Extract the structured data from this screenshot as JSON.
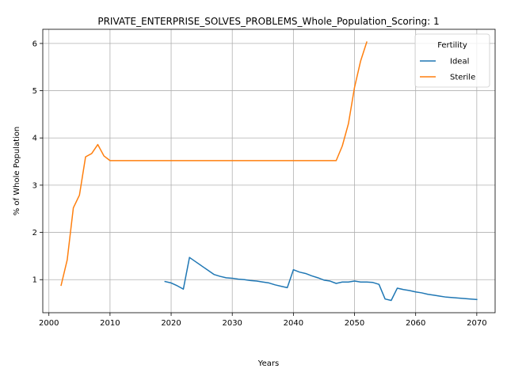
{
  "chart_data": {
    "type": "line",
    "title": "PRIVATE_ENTERPRISE_SOLVES_PROBLEMS_Whole_Population_Scoring: 1",
    "xlabel": "Years",
    "ylabel": "% of Whole Population",
    "xlim": [
      1999,
      2073
    ],
    "ylim": [
      0.3,
      6.3
    ],
    "xticks": [
      2000,
      2010,
      2020,
      2030,
      2040,
      2050,
      2060,
      2070
    ],
    "yticks": [
      1,
      2,
      3,
      4,
      5,
      6
    ],
    "grid": true,
    "legend": {
      "title": "Fertility",
      "placement": "top-right"
    },
    "series": [
      {
        "name": "Ideal",
        "color": "#1f77b4",
        "points": [
          [
            2019,
            0.96
          ],
          [
            2020,
            0.93
          ],
          [
            2021,
            0.87
          ],
          [
            2022,
            0.8
          ],
          [
            2023,
            1.47
          ],
          [
            2024,
            1.38
          ],
          [
            2025,
            1.29
          ],
          [
            2026,
            1.2
          ],
          [
            2027,
            1.11
          ],
          [
            2028,
            1.07
          ],
          [
            2029,
            1.04
          ],
          [
            2030,
            1.03
          ],
          [
            2031,
            1.01
          ],
          [
            2032,
            1.0
          ],
          [
            2033,
            0.98
          ],
          [
            2034,
            0.97
          ],
          [
            2035,
            0.95
          ],
          [
            2036,
            0.93
          ],
          [
            2037,
            0.89
          ],
          [
            2038,
            0.86
          ],
          [
            2039,
            0.83
          ],
          [
            2040,
            1.21
          ],
          [
            2041,
            1.16
          ],
          [
            2042,
            1.13
          ],
          [
            2043,
            1.08
          ],
          [
            2044,
            1.04
          ],
          [
            2045,
            0.99
          ],
          [
            2046,
            0.97
          ],
          [
            2047,
            0.92
          ],
          [
            2048,
            0.95
          ],
          [
            2049,
            0.95
          ],
          [
            2050,
            0.97
          ],
          [
            2051,
            0.95
          ],
          [
            2052,
            0.95
          ],
          [
            2053,
            0.94
          ],
          [
            2054,
            0.9
          ],
          [
            2055,
            0.59
          ],
          [
            2056,
            0.56
          ],
          [
            2057,
            0.82
          ],
          [
            2058,
            0.79
          ],
          [
            2059,
            0.77
          ],
          [
            2060,
            0.74
          ],
          [
            2061,
            0.72
          ],
          [
            2062,
            0.69
          ],
          [
            2063,
            0.67
          ],
          [
            2064,
            0.65
          ],
          [
            2065,
            0.63
          ],
          [
            2066,
            0.62
          ],
          [
            2067,
            0.61
          ],
          [
            2068,
            0.6
          ],
          [
            2069,
            0.59
          ],
          [
            2070,
            0.58
          ]
        ]
      },
      {
        "name": "Sterile",
        "color": "#ff7f0e",
        "points": [
          [
            2002,
            0.88
          ],
          [
            2003,
            1.42
          ],
          [
            2004,
            2.52
          ],
          [
            2005,
            2.79
          ],
          [
            2006,
            3.6
          ],
          [
            2007,
            3.67
          ],
          [
            2008,
            3.86
          ],
          [
            2009,
            3.62
          ],
          [
            2010,
            3.52
          ],
          [
            2015,
            3.52
          ],
          [
            2020,
            3.52
          ],
          [
            2025,
            3.52
          ],
          [
            2030,
            3.52
          ],
          [
            2035,
            3.52
          ],
          [
            2040,
            3.52
          ],
          [
            2045,
            3.52
          ],
          [
            2047,
            3.52
          ],
          [
            2048,
            3.83
          ],
          [
            2049,
            4.3
          ],
          [
            2050,
            5.07
          ],
          [
            2051,
            5.63
          ],
          [
            2052,
            6.03
          ]
        ]
      }
    ]
  }
}
